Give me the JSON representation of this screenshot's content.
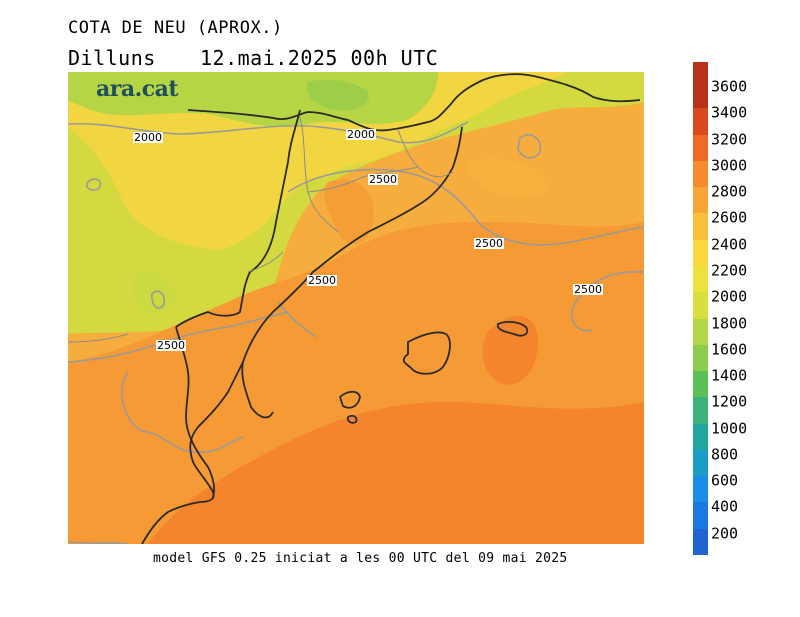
{
  "header": {
    "title": "COTA DE NEU (APROX.)",
    "day": "Dilluns",
    "datetime": "12.mai.2025 00h UTC"
  },
  "logo": {
    "text": "ara.cat"
  },
  "footer": {
    "text": "model GFS 0.25 iniciat a les 00 UTC del 09 mai 2025"
  },
  "map": {
    "contour_labels": [
      "2000",
      "2000",
      "2500",
      "2500",
      "2500",
      "2500",
      "2500"
    ]
  },
  "legend": {
    "labels": [
      "3600",
      "3400",
      "3200",
      "3000",
      "2800",
      "2600",
      "2400",
      "2200",
      "2000",
      "1800",
      "1600",
      "1400",
      "1200",
      "1000",
      "800",
      "600",
      "400",
      "200"
    ],
    "colors": [
      "#b8321a",
      "#d84a1e",
      "#f06a25",
      "#f58a2e",
      "#f7a536",
      "#f9bf3d",
      "#fbd73f",
      "#ede13c",
      "#d9df3f",
      "#b3d646",
      "#8ccc4c",
      "#5dbf57",
      "#3cb27a",
      "#22a59c",
      "#1a9cc4",
      "#1a8ee6",
      "#1b78e0",
      "#2362d2"
    ]
  }
}
